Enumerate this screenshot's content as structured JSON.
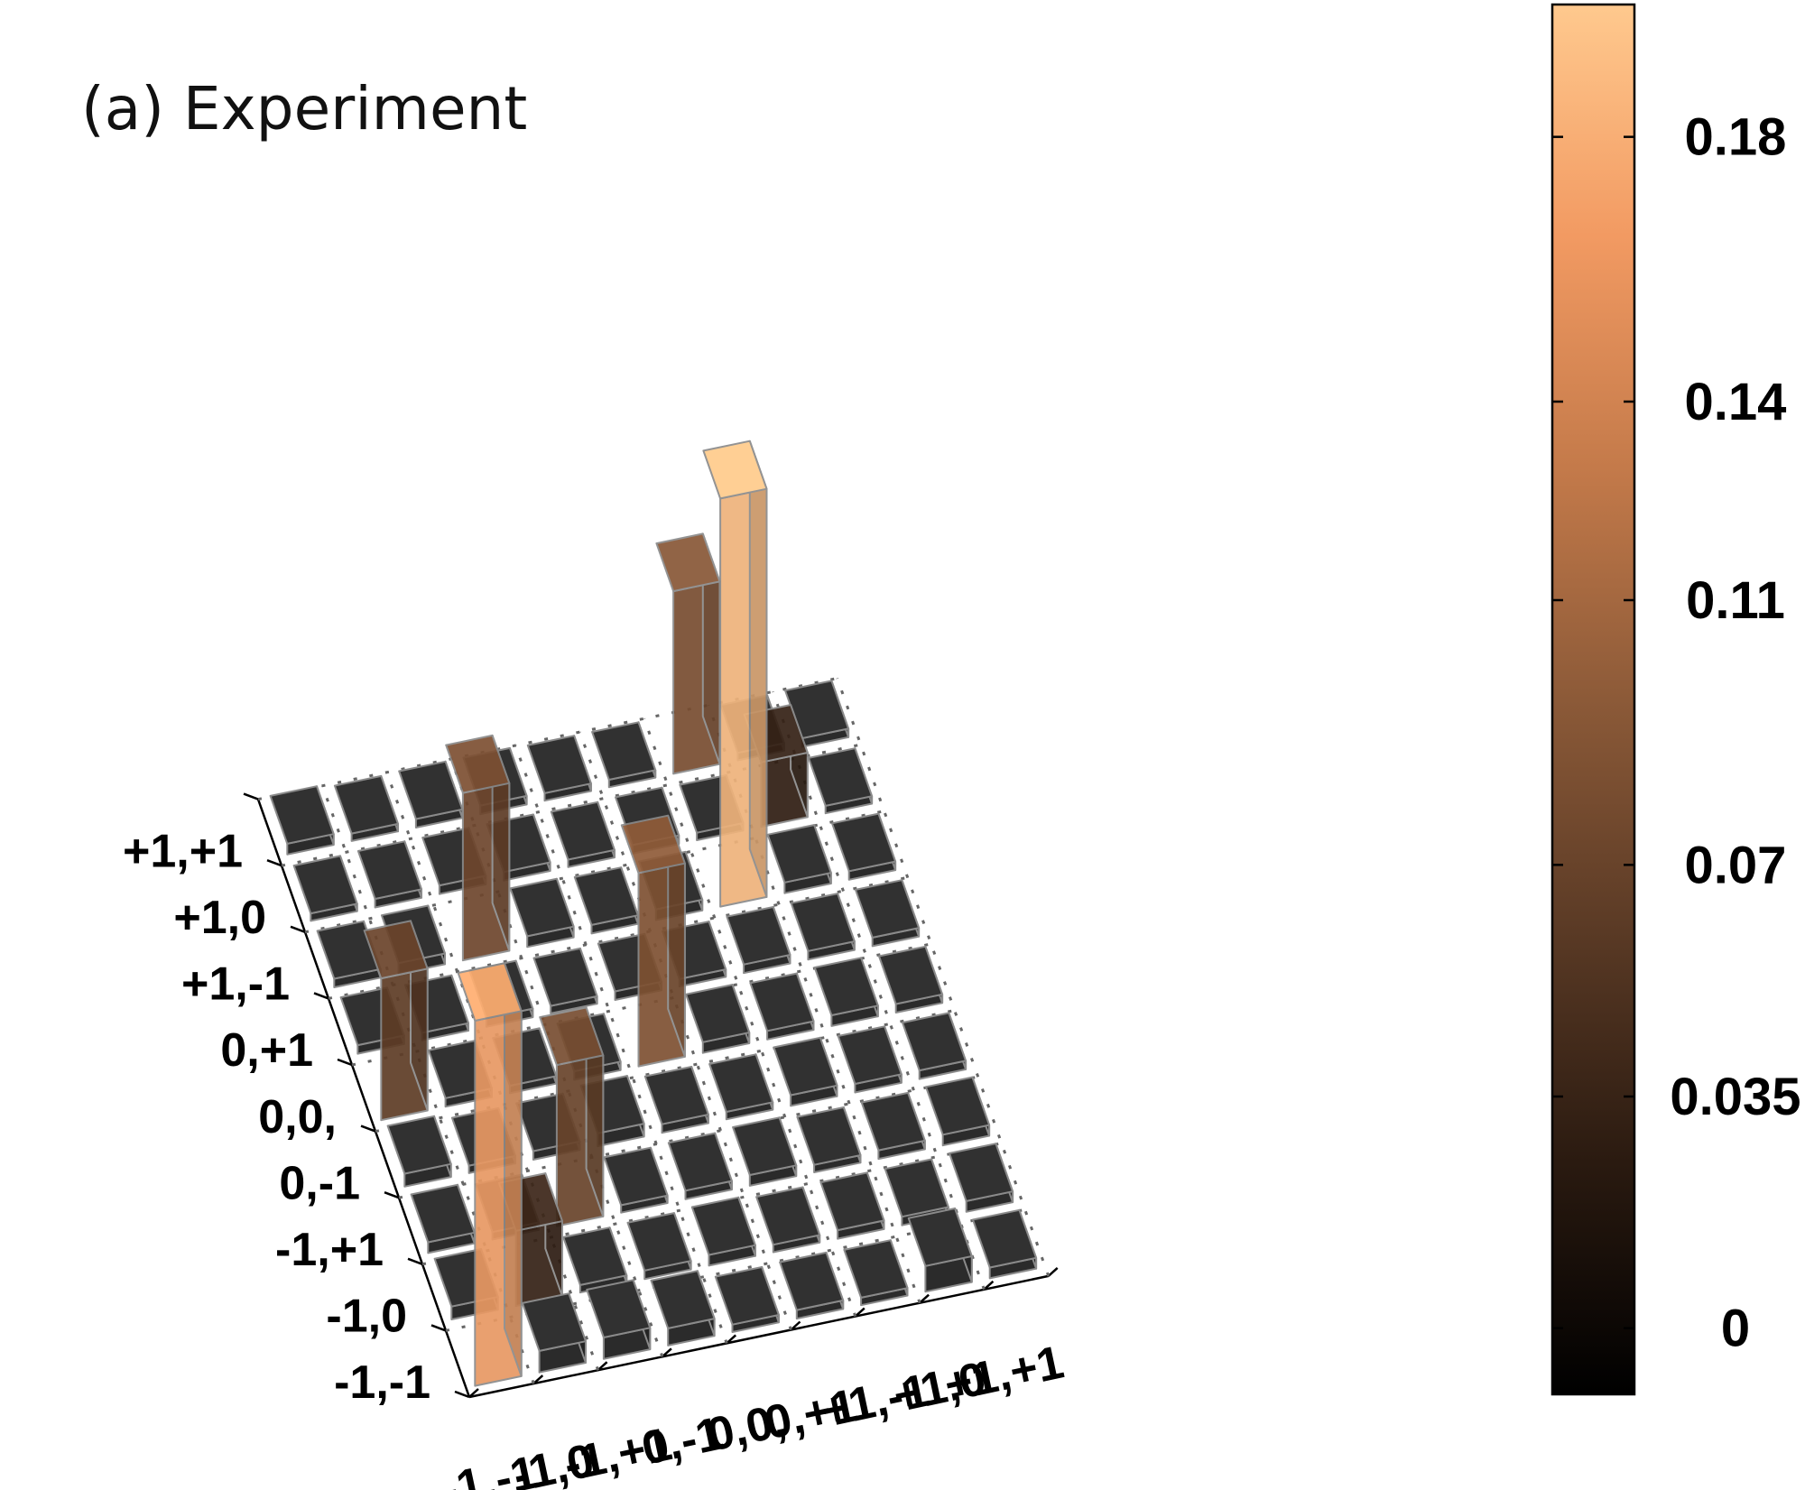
{
  "panel": {
    "title": "(a)  Experiment"
  },
  "chart_data": {
    "type": "bar3d",
    "title": "(a)  Experiment",
    "x_tick_labels": [
      "-1,-1",
      "-1,0",
      "-1,+1",
      "0,-1",
      "0,0,",
      "0,+1",
      "+1,-1",
      "+1,0",
      "+1,+1"
    ],
    "y_tick_labels": [
      "+1,+1",
      "+1,0",
      "+1,-1",
      "0,+1",
      "0,0,",
      "0,-1",
      "-1,+1",
      "-1,0",
      "-1,-1"
    ],
    "zlim": [
      0,
      0.2
    ],
    "colorbar": {
      "ticks": [
        "0",
        "0.035",
        "0.07",
        "0.11",
        "0.14",
        "0.18"
      ],
      "tick_values": [
        0,
        0.035,
        0.07,
        0.11,
        0.14,
        0.18
      ],
      "range": [
        -0.01,
        0.2
      ],
      "colormap": [
        "#000000",
        "#2a1a10",
        "#5a3a25",
        "#8c5a38",
        "#c47a4a",
        "#f29a62",
        "#ffc98e"
      ]
    },
    "matrix": [
      [
        0.17,
        0.01,
        0.01,
        0.008,
        0.003,
        0.004,
        0.003,
        0.012,
        0.005
      ],
      [
        0.006,
        0.035,
        0.003,
        0.004,
        0.005,
        0.003,
        0.004,
        0.004,
        0.005
      ],
      [
        0.005,
        0.003,
        0.075,
        0.003,
        0.004,
        0.005,
        0.003,
        0.004,
        0.005
      ],
      [
        0.006,
        0.003,
        0.004,
        0.006,
        0.004,
        0.003,
        0.005,
        0.004,
        0.004
      ],
      [
        0.066,
        0.004,
        0.003,
        0.004,
        0.09,
        0.005,
        0.004,
        0.005,
        0.004
      ],
      [
        0.004,
        0.003,
        0.004,
        0.003,
        0.004,
        0.003,
        0.004,
        0.004,
        0.004
      ],
      [
        0.004,
        0.005,
        0.078,
        0.005,
        0.004,
        0.005,
        0.19,
        0.005,
        0.004
      ],
      [
        0.003,
        0.004,
        0.004,
        0.004,
        0.003,
        0.004,
        0.003,
        0.03,
        0.003
      ],
      [
        0.005,
        0.003,
        0.004,
        0.004,
        0.003,
        0.003,
        0.085,
        0.003,
        0.004
      ]
    ],
    "highlight_bars": [
      {
        "x": "-1,-1",
        "y": "+1,+1",
        "value": 0.16
      },
      {
        "x": "-1,0",
        "y": "+1,0",
        "value": 0.06
      },
      {
        "x": "-1,+1",
        "y": "+1,-1",
        "value": 0.078
      },
      {
        "x": "0,-1",
        "y": "+1,0",
        "value": 0.055
      },
      {
        "x": "0,0,",
        "y": "0,0,",
        "value": 0.09
      },
      {
        "x": "0,+1",
        "y": "+1,-1",
        "value": 0.075
      },
      {
        "x": "+1,-1",
        "y": "-1,+1",
        "value": 0.19
      },
      {
        "x": "+1,0",
        "y": "-1,0",
        "value": 0.03
      },
      {
        "x": "+1,+1",
        "y": "-1,-1",
        "value": 0.2
      }
    ]
  }
}
